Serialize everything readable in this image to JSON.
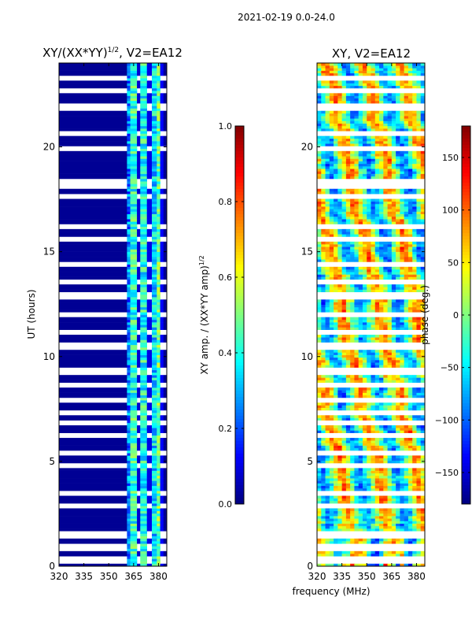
{
  "suptitle": "2021-02-19 0.0-24.0",
  "xlabel_shared": "frequency (MHz)",
  "chart_data": [
    {
      "type": "heatmap",
      "title_main": "XY/(XX*YY)",
      "title_sup": "1/2",
      "title_tail": ", V2=EA12",
      "xlabel": "frequency (MHz)",
      "ylabel": "UT (hours)",
      "xlim": [
        320,
        385
      ],
      "ylim": [
        0,
        24
      ],
      "xticks": [
        320,
        335,
        350,
        365,
        380
      ],
      "yticks": [
        0,
        5,
        10,
        15,
        20
      ],
      "colorbar": {
        "label_main": "XY amp. / (XX*YY amp)",
        "label_sup": "1/2",
        "range": [
          0.0,
          1.0
        ],
        "ticks": [
          "0.0",
          "0.2",
          "0.4",
          "0.6",
          "0.8",
          "1.0"
        ],
        "tick_values": [
          0.0,
          0.2,
          0.4,
          0.6,
          0.8,
          1.0
        ],
        "colormap": "jet"
      },
      "bands": [
        {
          "x0": 320,
          "x1": 361,
          "value": 0.02
        },
        {
          "x0": 361,
          "x1": 363,
          "value": 0.25
        },
        {
          "x0": 363,
          "x1": 367,
          "value": 0.42
        },
        {
          "x0": 367,
          "x1": 369,
          "value": 0.08
        },
        {
          "x0": 369,
          "x1": 373,
          "value": 0.4
        },
        {
          "x0": 373,
          "x1": 376,
          "value": 0.1
        },
        {
          "x0": 376,
          "x1": 379,
          "value": 0.35
        },
        {
          "x0": 379,
          "x1": 381,
          "value": 0.48
        },
        {
          "x0": 381,
          "x1": 383,
          "value": 0.12
        },
        {
          "x0": 383,
          "x1": 385,
          "value": 0.02
        }
      ]
    },
    {
      "type": "heatmap",
      "title": "XY, V2=EA12",
      "xlabel": "frequency (MHz)",
      "ylabel": "",
      "xlim": [
        320,
        385
      ],
      "ylim": [
        0,
        24
      ],
      "xticks": [
        320,
        335,
        350,
        365,
        380
      ],
      "yticks": [
        0,
        5,
        10,
        15,
        20
      ],
      "colorbar": {
        "label": "phase (deg.)",
        "range": [
          -180,
          180
        ],
        "ticks": [
          "−150",
          "−100",
          "−50",
          "0",
          "50",
          "100",
          "150"
        ],
        "tick_values": [
          -150,
          -100,
          -50,
          0,
          50,
          100,
          150
        ],
        "colormap": "jet"
      }
    }
  ],
  "blank_rows_hours": [
    0.3,
    0.9,
    1.5,
    2.9,
    3.5,
    4.8,
    5.4,
    6.2,
    6.8,
    7.3,
    7.9,
    8.6,
    9.3,
    10.5,
    11.2,
    12.0,
    12.9,
    13.6,
    14.4,
    15.6,
    16.2,
    17.6,
    18.1,
    18.4,
    19.9,
    20.6,
    21.9,
    22.7,
    23.3
  ]
}
